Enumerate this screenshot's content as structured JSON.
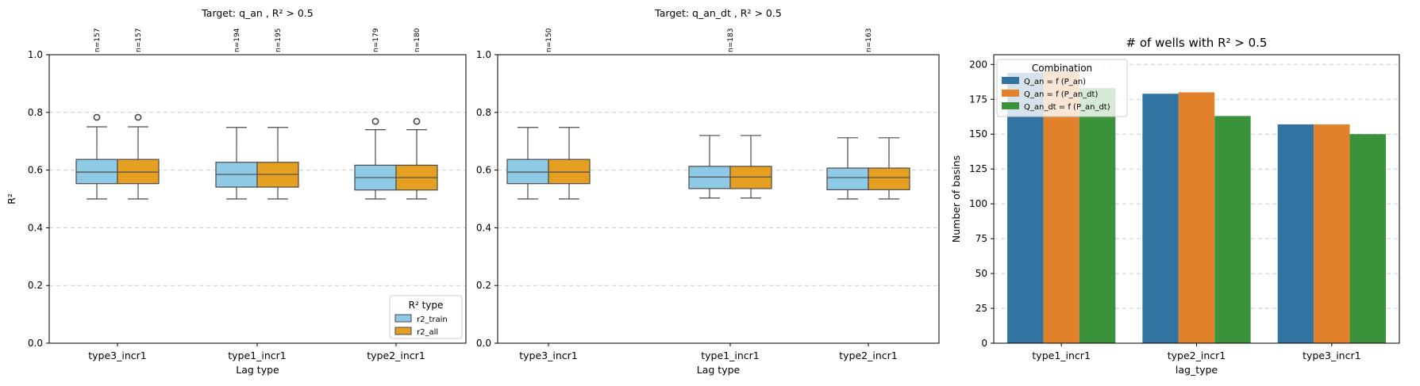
{
  "chart_data": [
    {
      "type": "box",
      "title": "Target: q_an , R² > 0.5",
      "xlabel": "Lag type",
      "ylabel": "R²",
      "ylim": [
        0,
        1.0
      ],
      "yticks": [
        "0.0",
        "0.2",
        "0.4",
        "0.6",
        "0.8",
        "1.0"
      ],
      "grid": true,
      "categories": [
        "type3_incr1",
        "type1_incr1",
        "type2_incr1"
      ],
      "legend": {
        "title": "R² type",
        "placement": "lower-right",
        "entries": [
          "r2_train",
          "r2_all"
        ]
      },
      "series": [
        {
          "name": "r2_train",
          "color": "#8ecae6",
          "boxes": [
            {
              "whislo": 0.5,
              "q1": 0.553,
              "med": 0.593,
              "q3": 0.637,
              "whishi": 0.75,
              "fliers": [
                0.783
              ],
              "n_label": "n=157"
            },
            {
              "whislo": 0.5,
              "q1": 0.541,
              "med": 0.585,
              "q3": 0.627,
              "whishi": 0.748,
              "fliers": [],
              "n_label": "n=194"
            },
            {
              "whislo": 0.5,
              "q1": 0.531,
              "med": 0.574,
              "q3": 0.617,
              "whishi": 0.74,
              "fliers": [
                0.769
              ],
              "n_label": "n=179"
            }
          ]
        },
        {
          "name": "r2_all",
          "color": "#e59f21",
          "boxes": [
            {
              "whislo": 0.5,
              "q1": 0.553,
              "med": 0.593,
              "q3": 0.637,
              "whishi": 0.75,
              "fliers": [
                0.783
              ],
              "n_label": "n=157"
            },
            {
              "whislo": 0.5,
              "q1": 0.541,
              "med": 0.585,
              "q3": 0.627,
              "whishi": 0.748,
              "fliers": [],
              "n_label": "n=195"
            },
            {
              "whislo": 0.5,
              "q1": 0.531,
              "med": 0.574,
              "q3": 0.617,
              "whishi": 0.74,
              "fliers": [
                0.769
              ],
              "n_label": "n=180"
            }
          ]
        }
      ]
    },
    {
      "type": "box",
      "title": "Target: q_an_dt , R² > 0.5",
      "xlabel": "Lag type",
      "ylabel": "",
      "ylim": [
        0,
        1.0
      ],
      "yticks": [
        "0.0",
        "0.2",
        "0.4",
        "0.6",
        "0.8",
        "1.0"
      ],
      "grid": true,
      "categories": [
        "type3_incr1",
        "type1_incr1",
        "type2_incr1"
      ],
      "n_labels": [
        "n=150",
        "n=183",
        "n=163"
      ],
      "series": [
        {
          "name": "r2_train",
          "color": "#8ecae6",
          "boxes": [
            {
              "whislo": 0.5,
              "q1": 0.553,
              "med": 0.593,
              "q3": 0.637,
              "whishi": 0.748,
              "fliers": []
            },
            {
              "whislo": 0.503,
              "q1": 0.536,
              "med": 0.576,
              "q3": 0.613,
              "whishi": 0.72,
              "fliers": []
            },
            {
              "whislo": 0.5,
              "q1": 0.532,
              "med": 0.574,
              "q3": 0.607,
              "whishi": 0.712,
              "fliers": []
            }
          ]
        },
        {
          "name": "r2_all",
          "color": "#e59f21",
          "boxes": [
            {
              "whislo": 0.5,
              "q1": 0.553,
              "med": 0.593,
              "q3": 0.637,
              "whishi": 0.748,
              "fliers": []
            },
            {
              "whislo": 0.503,
              "q1": 0.536,
              "med": 0.576,
              "q3": 0.613,
              "whishi": 0.72,
              "fliers": []
            },
            {
              "whislo": 0.5,
              "q1": 0.532,
              "med": 0.574,
              "q3": 0.607,
              "whishi": 0.712,
              "fliers": []
            }
          ]
        }
      ]
    },
    {
      "type": "bar",
      "title": "# of wells with R² > 0.5",
      "xlabel": "lag_type",
      "ylabel": "Number of basins",
      "ylim": [
        0,
        207
      ],
      "yticks": [
        0,
        25,
        50,
        75,
        100,
        125,
        150,
        175,
        200
      ],
      "grid": true,
      "categories": [
        "type1_incr1",
        "type2_incr1",
        "type3_incr1"
      ],
      "legend": {
        "title": "Combination",
        "placement": "upper-left"
      },
      "series": [
        {
          "name": "Q_an = f (P_an)",
          "color": "#3274a1",
          "values": [
            194,
            179,
            157
          ]
        },
        {
          "name": "Q_an = f (P_an_dt)",
          "color": "#e1812c",
          "values": [
            195,
            180,
            157
          ]
        },
        {
          "name": "Q_an_dt = f (P_an_dt)",
          "color": "#3a923a",
          "values": [
            183,
            163,
            150
          ]
        }
      ]
    }
  ]
}
